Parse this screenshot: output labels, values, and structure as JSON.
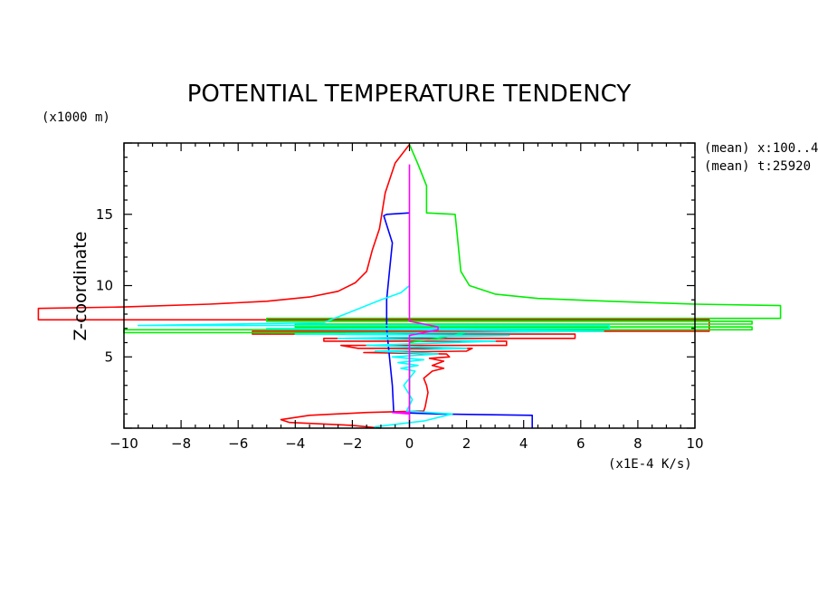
{
  "chart_data": {
    "type": "line",
    "title": "POTENTIAL TEMPERATURE TENDENCY",
    "y_unit_label": "(x1000 m)",
    "ylabel": "Z-coordinate",
    "x_unit_label": "(x1E-4 K/s)",
    "xlim": [
      -10,
      10
    ],
    "ylim": [
      0,
      20
    ],
    "x_ticks": [
      -10,
      -8,
      -6,
      -4,
      -2,
      0,
      2,
      4,
      6,
      8,
      10
    ],
    "y_ticks": [
      5,
      10,
      15
    ],
    "annotations": [
      "(mean) x:100..4",
      "(mean) t:25920"
    ],
    "series": [
      {
        "color": "#ff0000",
        "points": [
          [
            0,
            19.9
          ],
          [
            -0.5,
            18.6
          ],
          [
            -0.85,
            16.5
          ],
          [
            -1.05,
            14
          ],
          [
            -1.3,
            12.5
          ],
          [
            -1.5,
            11
          ],
          [
            -1.9,
            10.2
          ],
          [
            -2.5,
            9.6
          ],
          [
            -3.5,
            9.2
          ],
          [
            -5,
            8.9
          ],
          [
            -7,
            8.7
          ],
          [
            -10,
            8.5
          ],
          [
            -13,
            8.4
          ],
          [
            -13,
            7.6
          ],
          [
            10.5,
            7.6
          ],
          [
            10.5,
            6.8
          ],
          [
            -5.5,
            6.8
          ],
          [
            -5.5,
            6.6
          ],
          [
            5.8,
            6.6
          ],
          [
            5.8,
            6.3
          ],
          [
            -3,
            6.3
          ],
          [
            -3,
            6.1
          ],
          [
            3.4,
            6.1
          ],
          [
            3.4,
            5.8
          ],
          [
            -2.4,
            5.8
          ],
          [
            -1.8,
            5.6
          ],
          [
            2.2,
            5.6
          ],
          [
            2,
            5.4
          ],
          [
            -1.6,
            5.3
          ],
          [
            1.3,
            5.2
          ],
          [
            1.4,
            5.0
          ],
          [
            0.7,
            4.9
          ],
          [
            1.2,
            4.7
          ],
          [
            0.8,
            4.4
          ],
          [
            1.2,
            4.2
          ],
          [
            0.8,
            4.0
          ],
          [
            0.5,
            3.5
          ],
          [
            0.6,
            3.0
          ],
          [
            0.65,
            2.5
          ],
          [
            0.6,
            2.0
          ],
          [
            0.55,
            1.5
          ],
          [
            0.5,
            1.2
          ],
          [
            -1.5,
            1.1
          ],
          [
            -3.5,
            0.9
          ],
          [
            -4.5,
            0.6
          ],
          [
            -4.2,
            0.4
          ],
          [
            -2,
            0.2
          ],
          [
            -1,
            0
          ]
        ]
      },
      {
        "color": "#00ee00",
        "points": [
          [
            0,
            19.9
          ],
          [
            0.3,
            18.5
          ],
          [
            0.6,
            17
          ],
          [
            0.6,
            15.1
          ],
          [
            1.6,
            15
          ],
          [
            1.8,
            11
          ],
          [
            2.1,
            10
          ],
          [
            3,
            9.4
          ],
          [
            4.5,
            9.1
          ],
          [
            7,
            8.9
          ],
          [
            10,
            8.7
          ],
          [
            13,
            8.6
          ],
          [
            13,
            7.7
          ],
          [
            -5,
            7.7
          ],
          [
            -5,
            7.5
          ],
          [
            12,
            7.5
          ],
          [
            12,
            7.3
          ],
          [
            -4,
            7.3
          ],
          [
            -4,
            7.1
          ],
          [
            12,
            7.1
          ],
          [
            12,
            6.9
          ],
          [
            -10,
            6.9
          ],
          [
            -10,
            6.7
          ],
          [
            2,
            6.7
          ],
          [
            1,
            6.3
          ],
          [
            0,
            6.0
          ],
          [
            0,
            4.0
          ],
          [
            0,
            2.0
          ],
          [
            0,
            1.0
          ],
          [
            0,
            0
          ]
        ]
      },
      {
        "color": "#0000ff",
        "points": [
          [
            0,
            15.1
          ],
          [
            -0.8,
            15.0
          ],
          [
            -0.9,
            14.9
          ],
          [
            -0.6,
            13
          ],
          [
            -0.7,
            11
          ],
          [
            -0.8,
            9
          ],
          [
            -0.8,
            7
          ],
          [
            -0.7,
            5
          ],
          [
            -0.6,
            3
          ],
          [
            -0.55,
            1.1
          ],
          [
            1,
            1.0
          ],
          [
            4.3,
            0.9
          ],
          [
            4.3,
            0
          ]
        ]
      },
      {
        "color": "#00ffff",
        "points": [
          [
            0,
            10
          ],
          [
            -0.3,
            9.5
          ],
          [
            -1,
            9
          ],
          [
            -3,
            7.4
          ],
          [
            -9.5,
            7.2
          ],
          [
            7,
            7.2
          ],
          [
            7,
            7.0
          ],
          [
            -5,
            7.0
          ],
          [
            6.8,
            6.8
          ],
          [
            -4,
            6.6
          ],
          [
            3.5,
            6.5
          ],
          [
            -2.5,
            6.3
          ],
          [
            3,
            6.1
          ],
          [
            -1.5,
            5.8
          ],
          [
            2,
            5.6
          ],
          [
            -1.2,
            5.4
          ],
          [
            1,
            5.2
          ],
          [
            -0.6,
            5.0
          ],
          [
            0.5,
            4.8
          ],
          [
            -0.4,
            4.6
          ],
          [
            0.3,
            4.4
          ],
          [
            -0.3,
            4.2
          ],
          [
            0.2,
            4.0
          ],
          [
            -0.2,
            3.0
          ],
          [
            0.1,
            2.0
          ],
          [
            -0.1,
            1.2
          ],
          [
            1.5,
            1.0
          ],
          [
            0.5,
            0.5
          ],
          [
            -1.2,
            0.1
          ],
          [
            -1.2,
            0
          ]
        ]
      },
      {
        "color": "#ff00ff",
        "points": [
          [
            0,
            18.5
          ],
          [
            0,
            16
          ],
          [
            0,
            13
          ],
          [
            0,
            10
          ],
          [
            0,
            7.5
          ],
          [
            0.5,
            7.3
          ],
          [
            1,
            7.1
          ],
          [
            1,
            6.9
          ],
          [
            0,
            6.5
          ],
          [
            0,
            5
          ],
          [
            0,
            2
          ],
          [
            0,
            1.1
          ],
          [
            -0.6,
            1.1
          ],
          [
            0,
            1
          ],
          [
            0,
            0
          ]
        ]
      }
    ]
  }
}
